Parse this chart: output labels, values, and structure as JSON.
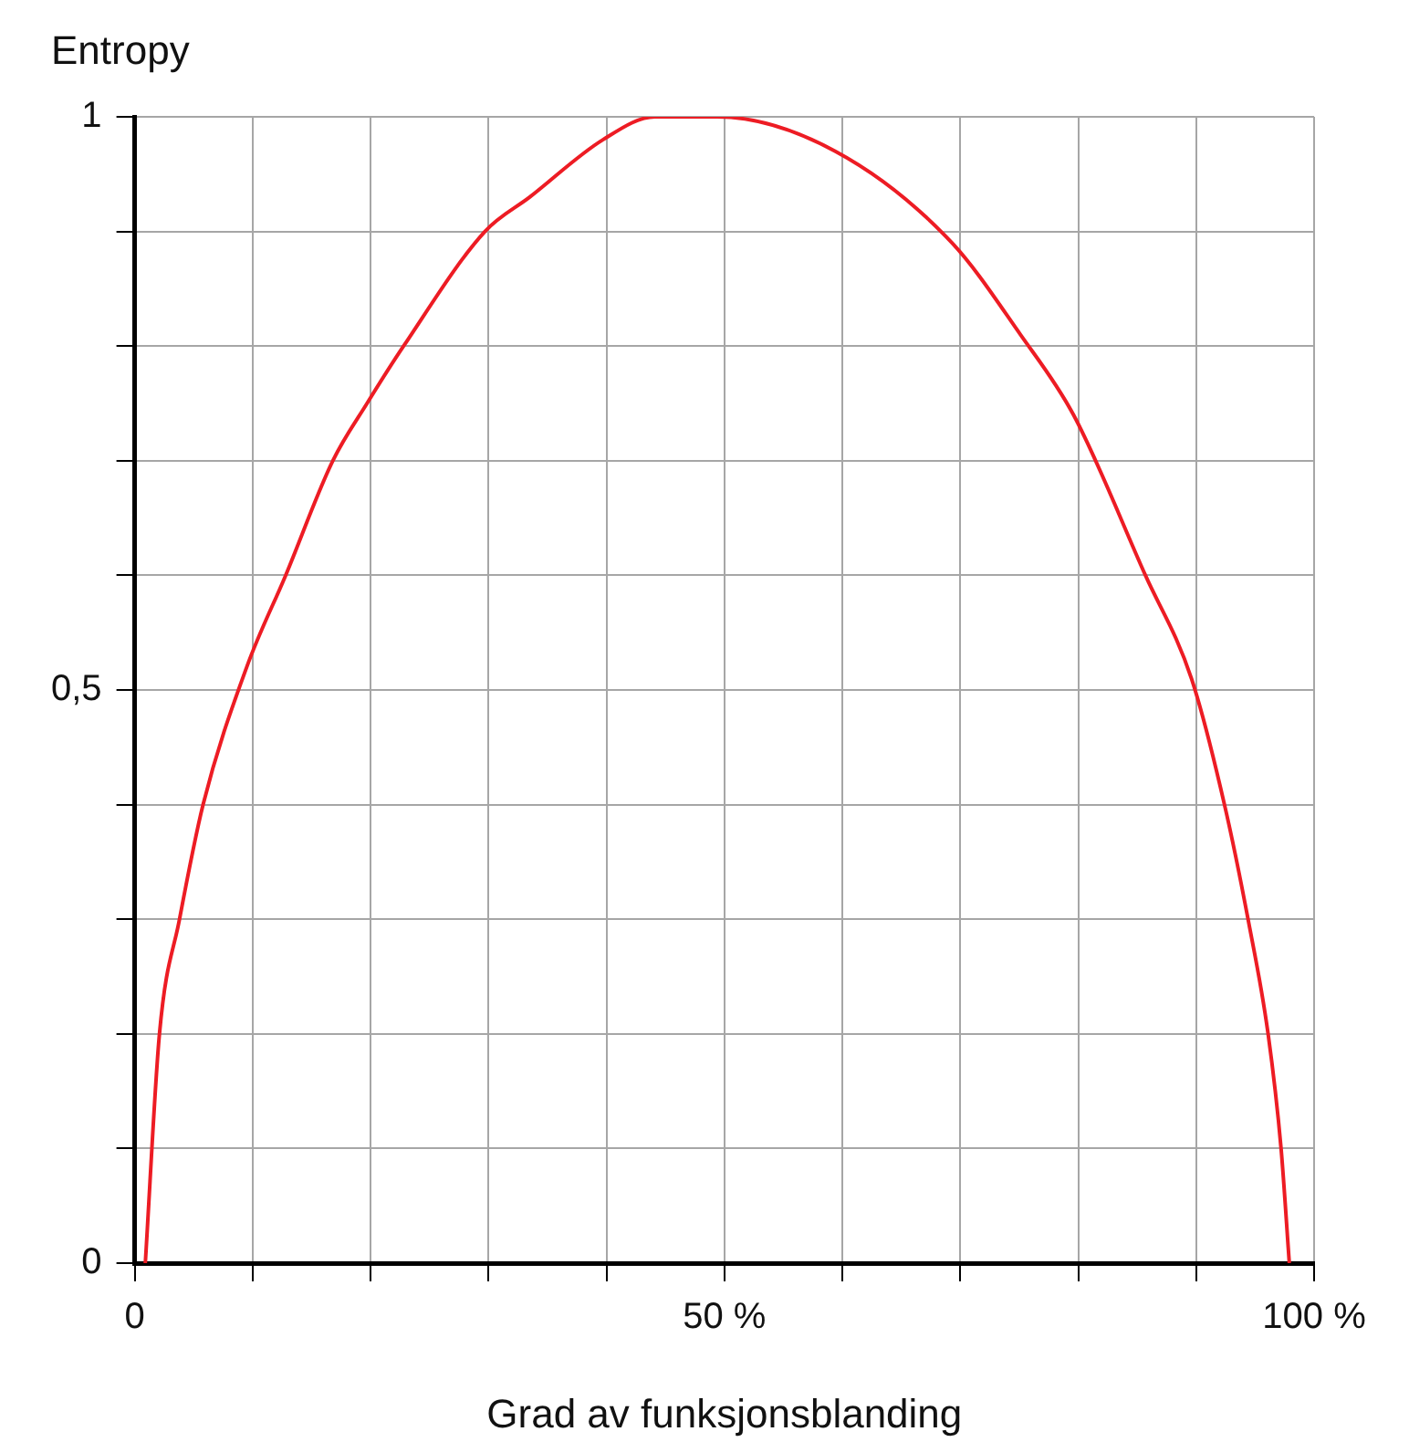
{
  "chart_data": {
    "type": "line",
    "ylabel": "Entropy",
    "xlabel": "Grad av funksjonsblanding",
    "x": [
      0.9,
      2.1,
      3.8,
      5.8,
      9.5,
      12.8,
      16.8,
      19.7,
      22.8,
      29.7,
      33.5,
      39.7,
      44.1,
      49.4,
      59.4,
      69.3,
      75.1,
      79.6,
      85.7,
      89.6,
      92.4,
      94.4,
      96.1,
      97.2,
      97.9
    ],
    "series": [
      {
        "color": "#ed1c24",
        "values": [
          0,
          0.2,
          0.3,
          0.4,
          0.52,
          0.6,
          0.7,
          0.75,
          0.8,
          0.9,
          0.93,
          0.98,
          1.0,
          1.0,
          0.97,
          0.89,
          0.81,
          0.74,
          0.6,
          0.51,
          0.4,
          0.3,
          0.2,
          0.1,
          0
        ]
      }
    ],
    "xlim": [
      0,
      100
    ],
    "xticks": [
      0,
      {
        "value": 10,
        "label": null
      },
      {
        "value": 20,
        "label": null
      },
      {
        "value": 30,
        "label": null
      },
      {
        "value": 40,
        "label": null
      },
      {
        "value": 50,
        "label": "50 %"
      },
      {
        "value": 60,
        "label": null
      },
      {
        "value": 70,
        "label": null
      },
      {
        "value": 80,
        "label": null
      },
      {
        "value": 90,
        "label": null
      },
      {
        "value": 100,
        "label": "100 %"
      }
    ],
    "ylim": [
      0,
      1
    ],
    "yticks": [
      0,
      {
        "value": 0.1,
        "label": null
      },
      {
        "value": 0.2,
        "label": null
      },
      {
        "value": 0.3,
        "label": null
      },
      {
        "value": 0.4,
        "label": null
      },
      {
        "value": 0.5,
        "label": "0,5"
      },
      {
        "value": 0.6,
        "label": null
      },
      {
        "value": 0.7,
        "label": null
      },
      {
        "value": 0.8,
        "label": null
      },
      {
        "value": 0.9,
        "label": null
      },
      1
    ],
    "grid": true,
    "marker": "none",
    "line_style": "solid"
  }
}
